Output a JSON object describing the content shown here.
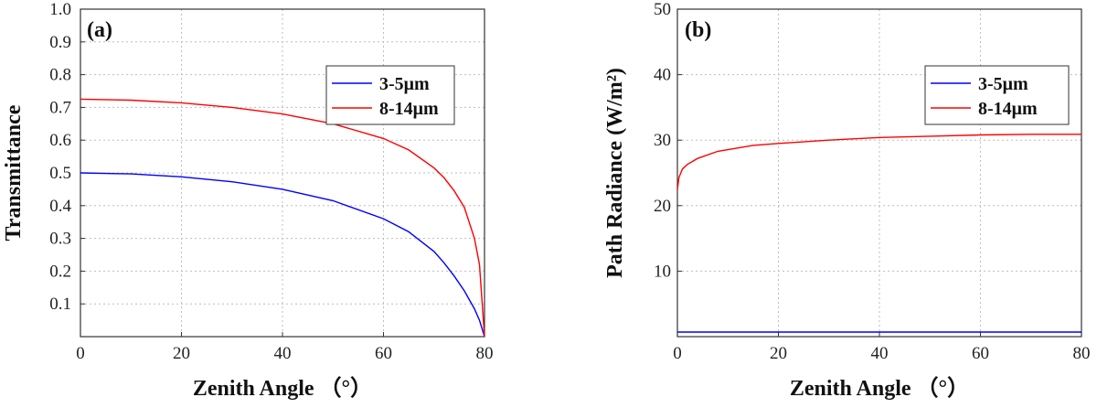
{
  "chart_data": [
    {
      "type": "line",
      "panel_label": "(a)",
      "xlabel": "Zenith Angle （°）",
      "ylabel": "Transmittance",
      "xlim": [
        0,
        80
      ],
      "ylim": [
        0,
        1.0
      ],
      "xticks": [
        "0",
        "20",
        "40",
        "60",
        "80"
      ],
      "yticks": [
        "0.1",
        "0.2",
        "0.3",
        "0.4",
        "0.5",
        "0.6",
        "0.7",
        "0.8",
        "0.9",
        "1.0"
      ],
      "grid": true,
      "legend": "top-right",
      "x": [
        0,
        10,
        20,
        30,
        40,
        50,
        60,
        65,
        70,
        72,
        74,
        76,
        78,
        79,
        80
      ],
      "series": [
        {
          "name": "3-5μm",
          "color": "#0000ff",
          "values": [
            0.5,
            0.497,
            0.488,
            0.473,
            0.45,
            0.415,
            0.36,
            0.32,
            0.26,
            0.225,
            0.185,
            0.14,
            0.085,
            0.05,
            0.0
          ]
        },
        {
          "name": "8-14μm",
          "color": "#ff0000",
          "values": [
            0.725,
            0.722,
            0.714,
            0.7,
            0.68,
            0.65,
            0.605,
            0.57,
            0.515,
            0.485,
            0.445,
            0.395,
            0.3,
            0.22,
            0.0
          ]
        }
      ]
    },
    {
      "type": "line",
      "panel_label": "(b)",
      "xlabel": "Zenith Angle （°）",
      "ylabel": "Path Radiance (W/m²)",
      "xlim": [
        0,
        80
      ],
      "ylim": [
        0,
        50
      ],
      "xticks": [
        "0",
        "20",
        "40",
        "60",
        "80"
      ],
      "yticks": [
        "10",
        "20",
        "30",
        "40",
        "50"
      ],
      "grid": true,
      "legend": "top-right",
      "x": [
        0,
        0.3,
        1,
        2,
        4,
        8,
        15,
        20,
        30,
        40,
        50,
        60,
        70,
        80
      ],
      "series": [
        {
          "name": "3-5μm",
          "color": "#0000ff",
          "values": [
            0.7,
            0.7,
            0.7,
            0.7,
            0.7,
            0.7,
            0.7,
            0.7,
            0.7,
            0.7,
            0.7,
            0.7,
            0.7,
            0.7
          ]
        },
        {
          "name": "8-14μm",
          "color": "#ff0000",
          "values": [
            22.5,
            24.3,
            25.6,
            26.3,
            27.2,
            28.3,
            29.2,
            29.5,
            30.0,
            30.4,
            30.6,
            30.8,
            30.9,
            30.9
          ]
        }
      ]
    }
  ]
}
